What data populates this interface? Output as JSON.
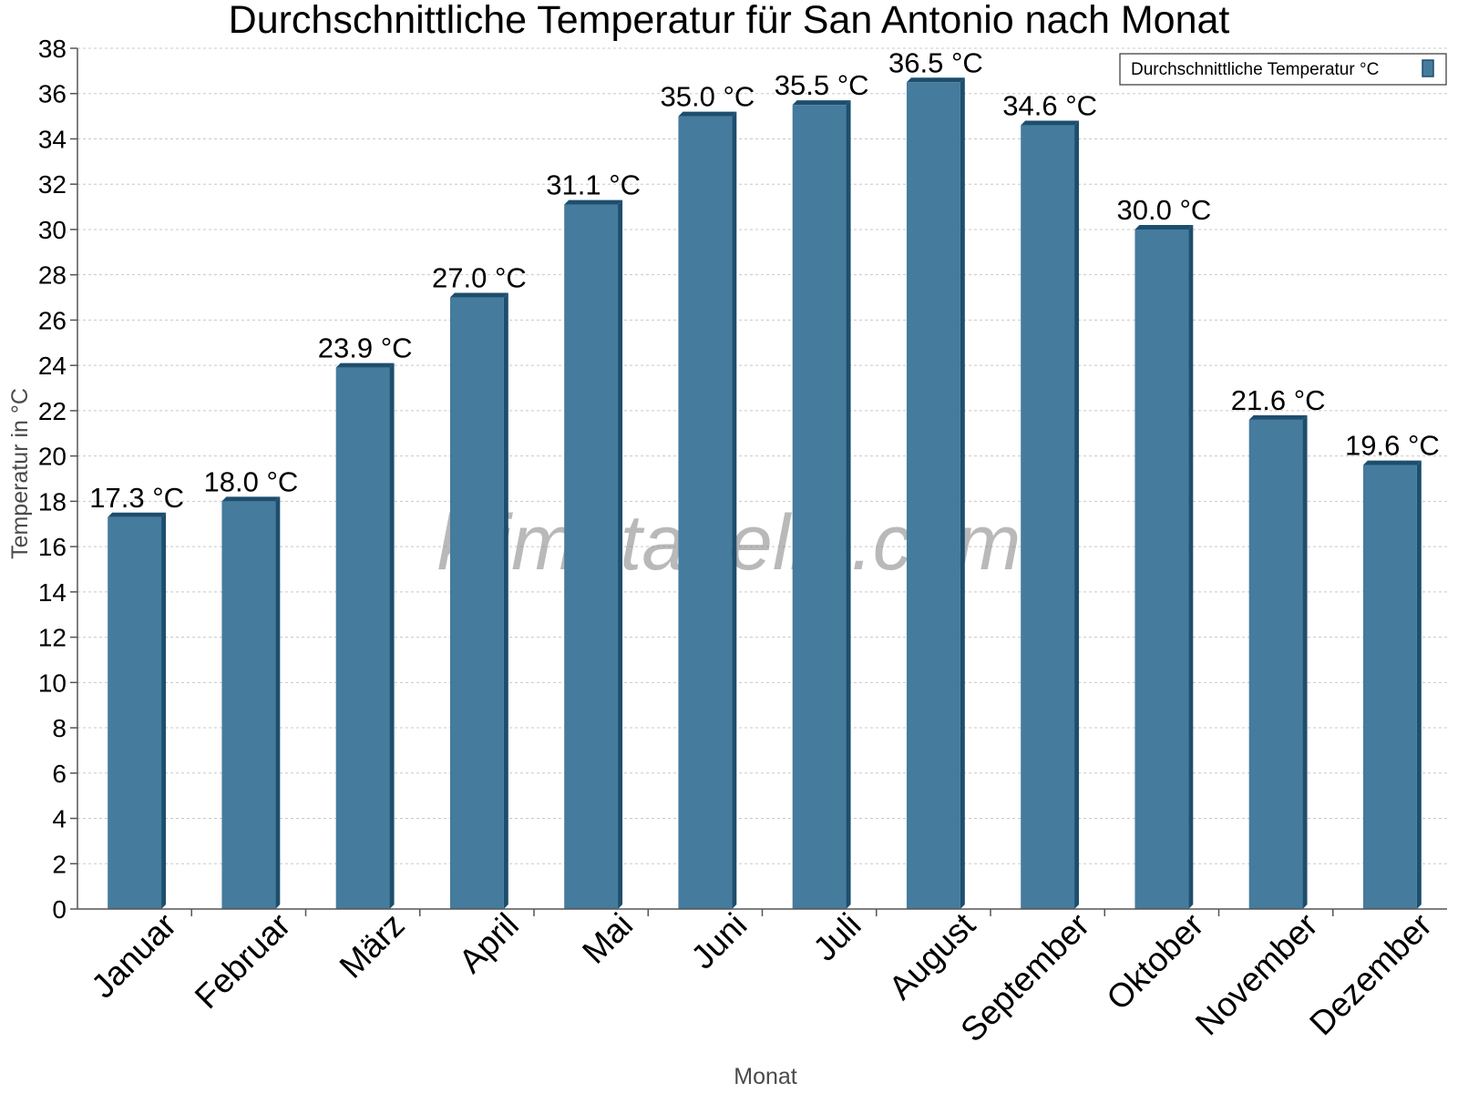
{
  "chart_data": {
    "type": "bar",
    "title": "Durchschnittliche Temperatur für San Antonio nach Monat",
    "xlabel": "Monat",
    "ylabel": "Temperatur in °C",
    "categories": [
      "Januar",
      "Februar",
      "März",
      "April",
      "Mai",
      "Juni",
      "Juli",
      "August",
      "September",
      "Oktober",
      "November",
      "Dezember"
    ],
    "series": [
      {
        "name": "Durchschnittliche Temperatur °C",
        "values": [
          17.3,
          18.0,
          23.9,
          27.0,
          31.1,
          35.0,
          35.5,
          36.5,
          34.6,
          30.0,
          21.6,
          19.6
        ],
        "labels": [
          "17.3 °C",
          "18.0 °C",
          "23.9 °C",
          "27.0 °C",
          "31.1 °C",
          "35.0 °C",
          "35.5 °C",
          "36.5 °C",
          "34.6 °C",
          "30.0 °C",
          "21.6 °C",
          "19.6 °C"
        ]
      }
    ],
    "ylim": [
      0,
      38
    ],
    "ytick_step": 2,
    "grid": true,
    "legend_position": "top-right",
    "colors": {
      "bar": "#457b9d",
      "bar_side": "#1d4e6e",
      "grid": "#c8c8c8",
      "axis": "#555555"
    },
    "watermark": "klimatabelle.com"
  }
}
